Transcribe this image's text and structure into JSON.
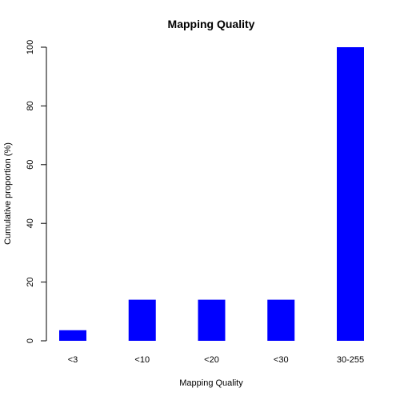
{
  "chart_data": {
    "type": "bar",
    "title": "Mapping Quality",
    "xlabel": "Mapping Quality",
    "ylabel": "Cumulative proportion (%)",
    "categories": [
      "<3",
      "<10",
      "<20",
      "<30",
      "30-255"
    ],
    "values": [
      3.6,
      14,
      14,
      14,
      100
    ],
    "ylim": [
      0,
      100
    ],
    "yticks": [
      0,
      20,
      40,
      60,
      80,
      100
    ],
    "grid": false,
    "bar_color": "#0000ff"
  }
}
